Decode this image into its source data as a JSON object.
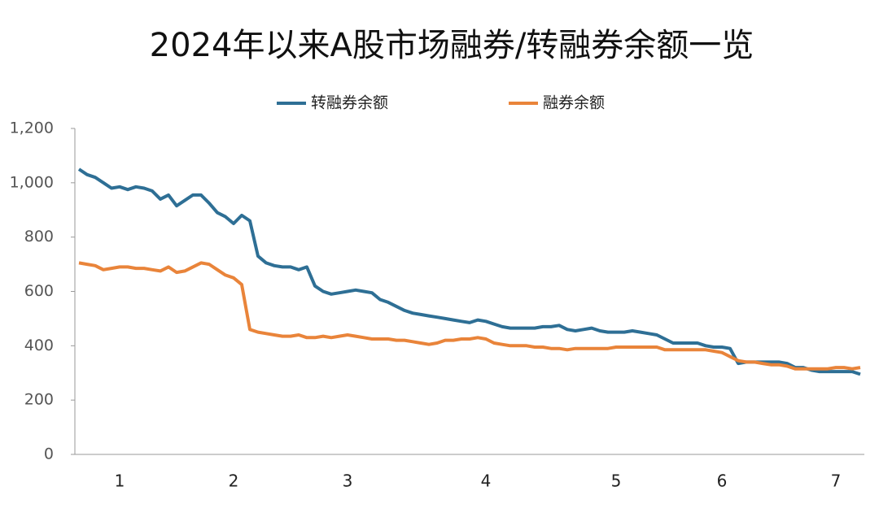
{
  "chart_data": {
    "type": "line",
    "title": "2024年以来A股市场融券/转融券余额一览",
    "categories": [
      null,
      null,
      null,
      null,
      null,
      "1",
      null,
      null,
      null,
      null,
      null,
      null,
      null,
      null,
      null,
      null,
      null,
      null,
      null,
      "2",
      null,
      null,
      null,
      null,
      null,
      null,
      null,
      null,
      null,
      null,
      null,
      null,
      null,
      "3",
      null,
      null,
      null,
      null,
      null,
      null,
      null,
      null,
      null,
      null,
      null,
      null,
      null,
      null,
      null,
      null,
      "4",
      null,
      null,
      null,
      null,
      null,
      null,
      null,
      null,
      null,
      null,
      null,
      null,
      null,
      null,
      null,
      "5",
      null,
      null,
      null,
      null,
      null,
      null,
      null,
      null,
      null,
      null,
      null,
      null,
      "6",
      null,
      null,
      null,
      null,
      null,
      null,
      null,
      null,
      null,
      null,
      null,
      null,
      null,
      "7",
      null,
      null,
      null
    ],
    "series": [
      {
        "name": "转融券余额",
        "color": "#2e6f95",
        "values": [
          1050,
          1030,
          1020,
          1000,
          980,
          985,
          975,
          985,
          980,
          970,
          940,
          955,
          915,
          935,
          955,
          955,
          925,
          890,
          875,
          850,
          880,
          860,
          730,
          705,
          695,
          690,
          690,
          680,
          690,
          620,
          600,
          590,
          595,
          600,
          605,
          600,
          595,
          570,
          560,
          545,
          530,
          520,
          515,
          510,
          505,
          500,
          495,
          490,
          485,
          495,
          490,
          480,
          470,
          465,
          465,
          465,
          465,
          470,
          470,
          475,
          460,
          455,
          460,
          465,
          455,
          450,
          450,
          450,
          455,
          450,
          445,
          440,
          425,
          410,
          410,
          410,
          410,
          400,
          395,
          395,
          390,
          335,
          340,
          340,
          340,
          340,
          340,
          335,
          320,
          320,
          310,
          305,
          305,
          305,
          305,
          305,
          295
        ]
      },
      {
        "name": "融券余额",
        "color": "#e9843a",
        "values": [
          705,
          700,
          695,
          680,
          685,
          690,
          690,
          685,
          685,
          680,
          675,
          690,
          670,
          675,
          690,
          705,
          700,
          680,
          660,
          650,
          625,
          460,
          450,
          445,
          440,
          435,
          435,
          440,
          430,
          430,
          435,
          430,
          435,
          440,
          435,
          430,
          425,
          425,
          425,
          420,
          420,
          415,
          410,
          405,
          410,
          420,
          420,
          425,
          425,
          430,
          425,
          410,
          405,
          400,
          400,
          400,
          395,
          395,
          390,
          390,
          385,
          390,
          390,
          390,
          390,
          390,
          395,
          395,
          395,
          395,
          395,
          395,
          385,
          385,
          385,
          385,
          385,
          385,
          380,
          375,
          360,
          345,
          340,
          340,
          335,
          330,
          330,
          325,
          315,
          315,
          315,
          315,
          315,
          320,
          320,
          315,
          320
        ]
      }
    ],
    "ylim": [
      0,
      1200
    ],
    "yticks": [
      0,
      200,
      400,
      600,
      800,
      {
        "value": 1000,
        "label": "1,000"
      },
      {
        "value": 1200,
        "label": "1,200"
      }
    ]
  }
}
